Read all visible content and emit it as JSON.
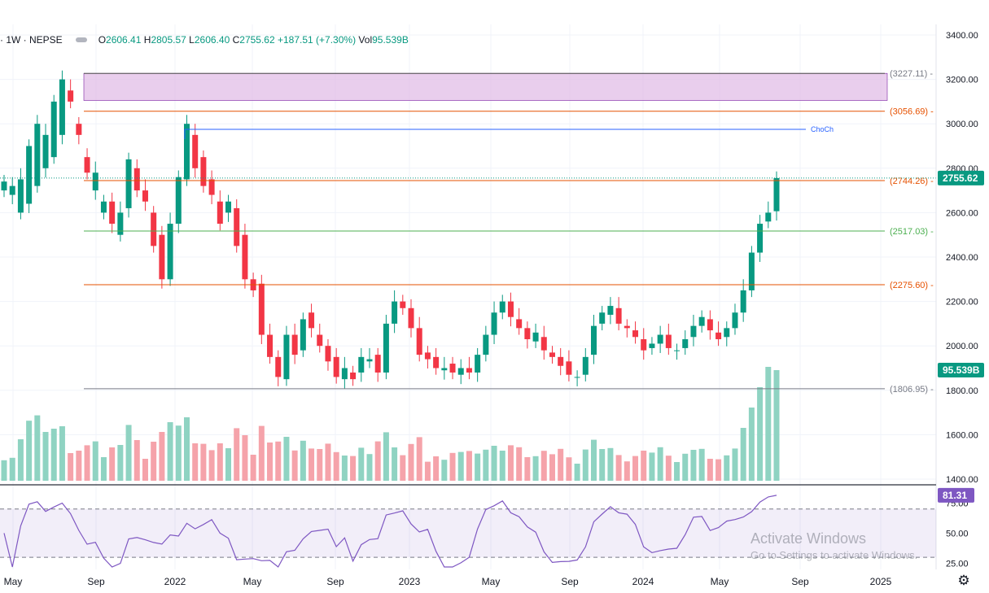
{
  "legend": {
    "symbol": "· 1W · NEPSE",
    "o_label": "O",
    "o": "2606.41",
    "h_label": "H",
    "h": "2805.57",
    "l_label": "L",
    "l": "2606.40",
    "c_label": "C",
    "c": "2755.62",
    "change": "+187.51 (+7.30%)",
    "vol_label": "Vol",
    "vol": "95.539B"
  },
  "watermark": {
    "title": "Activate Windows",
    "subtitle": "Go to Settings to activate Windows."
  },
  "icons": {
    "settings": "gear-icon"
  },
  "colors": {
    "up": "#089981",
    "down": "#f23645",
    "rsi": "#7e57c2",
    "zone": "#e1bee7",
    "level_orange": "#e65100",
    "level_green": "#4caf50",
    "choch": "#2962ff"
  },
  "chart_data": [
    {
      "type": "candlestick",
      "interval": "1W",
      "symbol": "NEPSE",
      "ylim": [
        1370,
        3450
      ],
      "y_ticks": [
        "3400.00",
        "3200.00",
        "3000.00",
        "2800.00",
        "2600.00",
        "2400.00",
        "2200.00",
        "2000.00",
        "1800.00",
        "1600.00",
        "1400.00"
      ],
      "x_ticks": [
        "May",
        "Sep",
        "2022",
        "May",
        "Sep",
        "2023",
        "May",
        "Sep",
        "2024",
        "May",
        "Sep",
        "2025"
      ],
      "levels": [
        {
          "label": "(3227.11)",
          "value": 3227.11,
          "kind": "zone_top"
        },
        {
          "label": "(3056.69)",
          "value": 3056.69,
          "kind": "orange"
        },
        {
          "label": "(2744.26)",
          "value": 2744.26,
          "kind": "orange"
        },
        {
          "label": "(2517.03)",
          "value": 2517.03,
          "kind": "green"
        },
        {
          "label": "(2275.60)",
          "value": 2275.6,
          "kind": "orange"
        },
        {
          "label": "(1806.95)",
          "value": 1806.95,
          "kind": "gray"
        }
      ],
      "zone": {
        "top": 3227.11,
        "bottom": 3105
      },
      "choch": {
        "label": "ChoCh",
        "value": 2975
      },
      "last_price": {
        "label": "2755.62",
        "value": 2755.62
      },
      "last_volume": {
        "label": "95.539B",
        "value": 95.539
      },
      "price_path": [
        [
          2700,
          2740
        ],
        [
          2680,
          2720
        ],
        [
          2600,
          2750
        ],
        [
          2640,
          2900
        ],
        [
          2720,
          3000
        ],
        [
          2800,
          2950
        ],
        [
          2850,
          3100
        ],
        [
          2950,
          3200
        ],
        [
          3150,
          3100
        ],
        [
          3000,
          2950
        ],
        [
          2850,
          2780
        ],
        [
          2700,
          2780
        ],
        [
          2600,
          2650
        ],
        [
          2650,
          2550
        ],
        [
          2500,
          2600
        ],
        [
          2620,
          2840
        ],
        [
          2800,
          2700
        ],
        [
          2700,
          2650
        ],
        [
          2600,
          2450
        ],
        [
          2500,
          2300
        ],
        [
          2300,
          2550
        ],
        [
          2550,
          2760
        ],
        [
          2750,
          3000
        ],
        [
          2950,
          2800
        ],
        [
          2850,
          2720
        ],
        [
          2750,
          2680
        ],
        [
          2650,
          2550
        ],
        [
          2600,
          2650
        ],
        [
          2620,
          2450
        ],
        [
          2500,
          2300
        ],
        [
          2300,
          2250
        ],
        [
          2280,
          2050
        ],
        [
          2050,
          1950
        ],
        [
          1950,
          1860
        ],
        [
          1850,
          2050
        ],
        [
          2050,
          1960
        ],
        [
          1980,
          2120
        ],
        [
          2150,
          2080
        ],
        [
          2050,
          2000
        ],
        [
          2000,
          1930
        ],
        [
          1950,
          1860
        ],
        [
          1850,
          1900
        ],
        [
          1880,
          1850
        ],
        [
          1880,
          1950
        ],
        [
          1930,
          1940
        ],
        [
          1960,
          1880
        ],
        [
          1880,
          2100
        ],
        [
          2100,
          2200
        ],
        [
          2200,
          2170
        ],
        [
          2170,
          2080
        ],
        [
          2080,
          1960
        ],
        [
          1970,
          1940
        ],
        [
          1950,
          1900
        ],
        [
          1890,
          1900
        ],
        [
          1920,
          1880
        ],
        [
          1870,
          1900
        ],
        [
          1900,
          1880
        ],
        [
          1880,
          1960
        ],
        [
          1960,
          2050
        ],
        [
          2050,
          2150
        ],
        [
          2150,
          2200
        ],
        [
          2200,
          2130
        ],
        [
          2120,
          2080
        ],
        [
          2080,
          2030
        ],
        [
          2020,
          2060
        ],
        [
          2040,
          1980
        ],
        [
          1970,
          1950
        ],
        [
          1950,
          1910
        ],
        [
          1930,
          1870
        ],
        [
          1860,
          1860
        ],
        [
          1870,
          1950
        ],
        [
          1960,
          2090
        ],
        [
          2100,
          2150
        ],
        [
          2140,
          2180
        ],
        [
          2170,
          2100
        ],
        [
          2090,
          2080
        ],
        [
          2070,
          2040
        ],
        [
          2030,
          1980
        ],
        [
          1990,
          2010
        ],
        [
          2010,
          2050
        ],
        [
          2050,
          1990
        ],
        [
          1980,
          1980
        ],
        [
          1990,
          2030
        ],
        [
          2040,
          2090
        ],
        [
          2090,
          2130
        ],
        [
          2120,
          2070
        ],
        [
          2060,
          2030
        ],
        [
          2040,
          2080
        ],
        [
          2080,
          2150
        ],
        [
          2150,
          2250
        ],
        [
          2250,
          2420
        ],
        [
          2420,
          2550
        ],
        [
          2560,
          2600
        ],
        [
          2606.41,
          2755.62
        ]
      ],
      "rsi": {
        "ticks": [
          "75.00",
          "50.00",
          "25.00"
        ],
        "ylim": [
          20,
          90
        ],
        "bands": [
          70,
          30
        ],
        "last_label": "81.31",
        "last": 81.31
      }
    }
  ]
}
